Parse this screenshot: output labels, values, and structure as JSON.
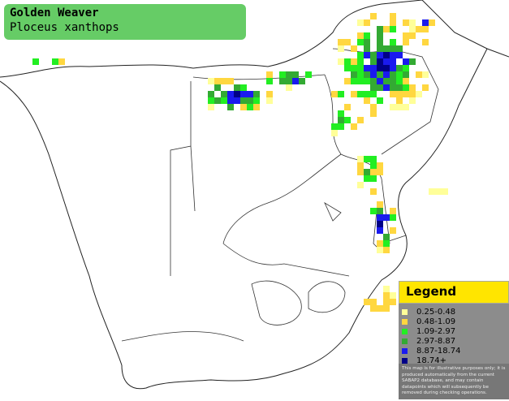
{
  "header": {
    "title": "Golden Weaver",
    "subtitle": "Ploceus xanthops"
  },
  "legend": {
    "title": "Legend",
    "items": [
      {
        "label": "0.25-0.48",
        "color": "#ffff99"
      },
      {
        "label": "0.48-1.09",
        "color": "#ffd740"
      },
      {
        "label": "1.09-2.97",
        "color": "#22ee22"
      },
      {
        "label": "2.97-8.87",
        "color": "#33aa33"
      },
      {
        "label": "8.87-18.74",
        "color": "#1a1aee"
      },
      {
        "label": "18.74+",
        "color": "#000088"
      }
    ],
    "disclaimer": "This map is for illustrative purposes only; it is produced automatically from the current SABAP2 database, and may contain datapoints which will subsequently be removed during checking operations."
  }
}
